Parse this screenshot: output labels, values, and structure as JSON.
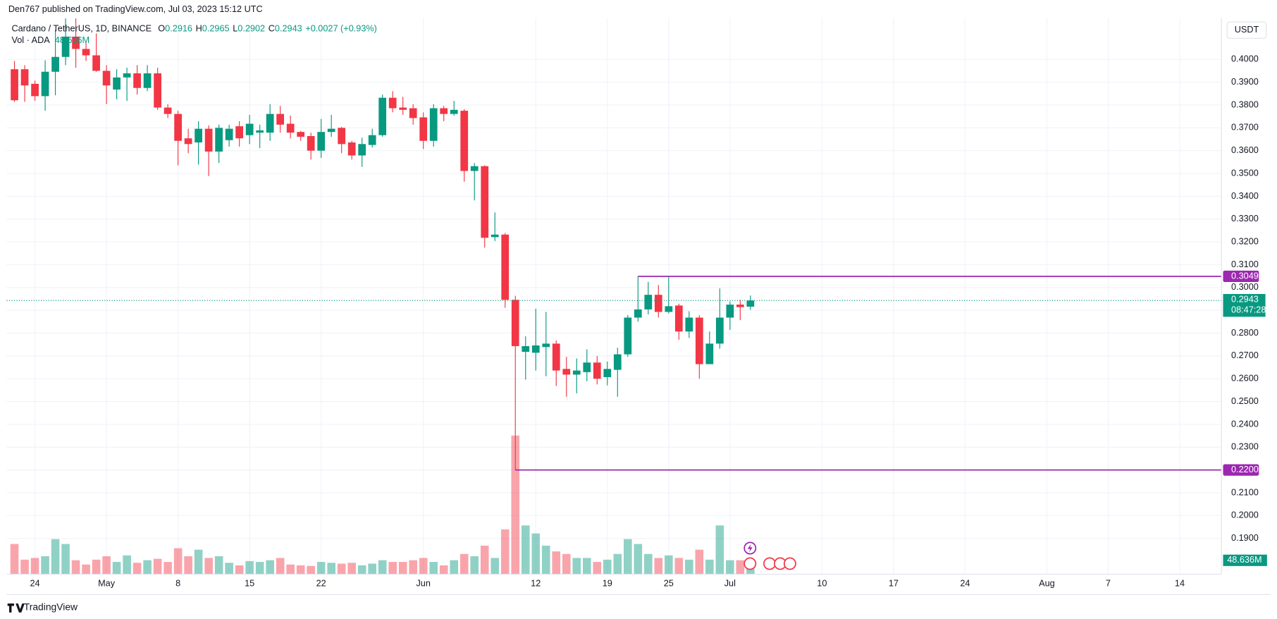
{
  "header": {
    "publisher": "Den767 published on TradingView.com, Jul 03, 2023 15:12 UTC"
  },
  "footer": {
    "brand": "TradingView"
  },
  "chart_data": {
    "type": "candlestick",
    "symbol": "Cardano / TetherUS, 1D, BINANCE",
    "ohlc_prefixes": [
      "O",
      "H",
      "L",
      "C"
    ],
    "change": "+0.0027 (+0.93%)",
    "volume_title": "Vol · ADA",
    "volume_label": "48.636M",
    "currency": "USDT",
    "countdown": "08:47:28",
    "up_color": "#089981",
    "down_color": "#f23645",
    "volume_up_color": "rgba(8,153,129,0.45)",
    "volume_down_color": "rgba(242,54,69,0.45)",
    "level_color": "#9c27b0",
    "grid": true,
    "x": [
      "2023-04-22",
      "2023-04-23",
      "2023-04-24",
      "2023-04-25",
      "2023-04-26",
      "2023-04-27",
      "2023-04-28",
      "2023-04-29",
      "2023-04-30",
      "2023-05-01",
      "2023-05-02",
      "2023-05-03",
      "2023-05-04",
      "2023-05-05",
      "2023-05-06",
      "2023-05-07",
      "2023-05-08",
      "2023-05-09",
      "2023-05-10",
      "2023-05-11",
      "2023-05-12",
      "2023-05-13",
      "2023-05-14",
      "2023-05-15",
      "2023-05-16",
      "2023-05-17",
      "2023-05-18",
      "2023-05-19",
      "2023-05-20",
      "2023-05-21",
      "2023-05-22",
      "2023-05-23",
      "2023-05-24",
      "2023-05-25",
      "2023-05-26",
      "2023-05-27",
      "2023-05-28",
      "2023-05-29",
      "2023-05-30",
      "2023-05-31",
      "2023-06-01",
      "2023-06-02",
      "2023-06-03",
      "2023-06-04",
      "2023-06-05",
      "2023-06-06",
      "2023-06-07",
      "2023-06-08",
      "2023-06-09",
      "2023-06-10",
      "2023-06-11",
      "2023-06-12",
      "2023-06-13",
      "2023-06-14",
      "2023-06-15",
      "2023-06-16",
      "2023-06-17",
      "2023-06-18",
      "2023-06-19",
      "2023-06-20",
      "2023-06-21",
      "2023-06-22",
      "2023-06-23",
      "2023-06-24",
      "2023-06-25",
      "2023-06-26",
      "2023-06-27",
      "2023-06-28",
      "2023-06-29",
      "2023-06-30",
      "2023-07-01",
      "2023-07-02",
      "2023-07-03"
    ],
    "open": [
      0.3957,
      0.3957,
      0.3893,
      0.3839,
      0.3946,
      0.4011,
      0.41,
      0.4046,
      0.4018,
      0.395,
      0.3868,
      0.3921,
      0.3939,
      0.3875,
      0.3939,
      0.3789,
      0.3761,
      0.3654,
      0.3636,
      0.3696,
      0.3596,
      0.3646,
      0.3707,
      0.3668,
      0.3679,
      0.3679,
      0.3761,
      0.3718,
      0.3682,
      0.3664,
      0.36,
      0.3682,
      0.37,
      0.3636,
      0.3579,
      0.3625,
      0.3668,
      0.3832,
      0.3789,
      0.3786,
      0.3746,
      0.3643,
      0.3786,
      0.3761,
      0.3775,
      0.3511,
      0.3532,
      0.3221,
      0.3232,
      0.2946,
      0.2718,
      0.2714,
      0.2739,
      0.2754,
      0.2643,
      0.2618,
      0.2629,
      0.2671,
      0.2607,
      0.2639,
      0.2707,
      0.2868,
      0.2904,
      0.2968,
      0.2893,
      0.2921,
      0.2807,
      0.2868,
      0.2664,
      0.2754,
      0.2868,
      0.2925,
      0.2916
    ],
    "high": [
      0.3993,
      0.3975,
      0.3907,
      0.3996,
      0.4129,
      0.418,
      0.418,
      0.4075,
      0.4114,
      0.3975,
      0.3957,
      0.3964,
      0.3975,
      0.3975,
      0.3964,
      0.3804,
      0.3775,
      0.3696,
      0.3729,
      0.3711,
      0.3714,
      0.3714,
      0.3729,
      0.3757,
      0.3714,
      0.3804,
      0.3796,
      0.3754,
      0.3686,
      0.3679,
      0.3739,
      0.3757,
      0.3704,
      0.3643,
      0.3657,
      0.3696,
      0.3846,
      0.3861,
      0.3836,
      0.3804,
      0.3768,
      0.3804,
      0.3796,
      0.3818,
      0.3782,
      0.3546,
      0.3536,
      0.3329,
      0.3239,
      0.2964,
      0.2786,
      0.2907,
      0.2893,
      0.2768,
      0.2696,
      0.2689,
      0.2729,
      0.27,
      0.2675,
      0.2736,
      0.2879,
      0.3049,
      0.3025,
      0.3011,
      0.3049,
      0.2929,
      0.2896,
      0.2879,
      0.2807,
      0.2996,
      0.2939,
      0.2946,
      0.2965
    ],
    "low": [
      0.3814,
      0.3814,
      0.3818,
      0.3775,
      0.3843,
      0.3975,
      0.3964,
      0.3993,
      0.3946,
      0.3804,
      0.3825,
      0.3818,
      0.3846,
      0.3861,
      0.3779,
      0.3743,
      0.3536,
      0.3589,
      0.3539,
      0.3489,
      0.3546,
      0.3618,
      0.3618,
      0.3629,
      0.3611,
      0.3643,
      0.3679,
      0.3654,
      0.3643,
      0.3561,
      0.3568,
      0.3661,
      0.3589,
      0.3561,
      0.3529,
      0.3614,
      0.3661,
      0.3768,
      0.3757,
      0.3714,
      0.3607,
      0.3618,
      0.3729,
      0.3754,
      0.3464,
      0.3382,
      0.3175,
      0.3204,
      0.2911,
      0.22,
      0.2596,
      0.2636,
      0.2611,
      0.2568,
      0.2521,
      0.2536,
      0.2589,
      0.2575,
      0.2571,
      0.2521,
      0.2696,
      0.285,
      0.2882,
      0.2868,
      0.2886,
      0.2771,
      0.2779,
      0.26,
      0.2664,
      0.2732,
      0.2814,
      0.2857,
      0.2902
    ],
    "close": [
      0.3821,
      0.3886,
      0.3839,
      0.3946,
      0.4011,
      0.41,
      0.4046,
      0.4018,
      0.395,
      0.3886,
      0.3921,
      0.3939,
      0.3875,
      0.3939,
      0.3789,
      0.3761,
      0.3643,
      0.3629,
      0.3696,
      0.3596,
      0.37,
      0.3696,
      0.3654,
      0.3718,
      0.3689,
      0.3761,
      0.3714,
      0.3679,
      0.3661,
      0.36,
      0.3682,
      0.3696,
      0.3629,
      0.3579,
      0.3629,
      0.3668,
      0.3832,
      0.3786,
      0.3779,
      0.3743,
      0.3643,
      0.3786,
      0.3761,
      0.3779,
      0.3511,
      0.3532,
      0.3218,
      0.3232,
      0.2946,
      0.2743,
      0.2743,
      0.2746,
      0.2754,
      0.2636,
      0.2618,
      0.2636,
      0.2671,
      0.26,
      0.2643,
      0.2707,
      0.2868,
      0.2904,
      0.2968,
      0.2893,
      0.2918,
      0.2807,
      0.2868,
      0.2664,
      0.2754,
      0.2868,
      0.2925,
      0.2914,
      0.2943
    ],
    "volume": [
      106,
      51,
      57,
      63,
      123,
      106,
      49,
      34,
      51,
      63,
      43,
      66,
      40,
      49,
      54,
      43,
      91,
      63,
      86,
      57,
      63,
      40,
      31,
      46,
      43,
      49,
      57,
      34,
      31,
      29,
      43,
      40,
      37,
      40,
      31,
      37,
      49,
      43,
      43,
      49,
      57,
      43,
      31,
      49,
      71,
      63,
      100,
      57,
      157,
      486,
      171,
      143,
      100,
      80,
      71,
      57,
      57,
      43,
      51,
      71,
      123,
      106,
      71,
      57,
      66,
      57,
      51,
      86,
      51,
      171,
      49,
      49,
      48.636
    ],
    "volume_ylim": [
      0,
      1950
    ],
    "xlim": [
      "2023-04-21",
      "2023-08-18"
    ],
    "xticks": [
      {
        "value": "2023-04-24",
        "label": "24"
      },
      {
        "value": "2023-05-01",
        "label": "May"
      },
      {
        "value": "2023-05-08",
        "label": "8"
      },
      {
        "value": "2023-05-15",
        "label": "15"
      },
      {
        "value": "2023-05-22",
        "label": "22"
      },
      {
        "value": "2023-06-01",
        "label": "Jun"
      },
      {
        "value": "2023-06-12",
        "label": "12"
      },
      {
        "value": "2023-06-19",
        "label": "19"
      },
      {
        "value": "2023-06-25",
        "label": "25"
      },
      {
        "value": "2023-07-01",
        "label": "Jul"
      },
      {
        "value": "2023-07-10",
        "label": "10"
      },
      {
        "value": "2023-07-17",
        "label": "17"
      },
      {
        "value": "2023-07-24",
        "label": "24"
      },
      {
        "value": "2023-08-01",
        "label": "Aug"
      },
      {
        "value": "2023-08-07",
        "label": "7"
      },
      {
        "value": "2023-08-14",
        "label": "14"
      }
    ],
    "ylim": [
      0.1743,
      0.4182
    ],
    "yticks": [
      {
        "value": 0.19,
        "label": "0.1900"
      },
      {
        "value": 0.2,
        "label": "0.2000"
      },
      {
        "value": 0.21,
        "label": "0.2100"
      },
      {
        "value": 0.22,
        "label": "0.2200"
      },
      {
        "value": 0.23,
        "label": "0.2300"
      },
      {
        "value": 0.24,
        "label": "0.2400"
      },
      {
        "value": 0.25,
        "label": "0.2500"
      },
      {
        "value": 0.26,
        "label": "0.2600"
      },
      {
        "value": 0.27,
        "label": "0.2700"
      },
      {
        "value": 0.28,
        "label": "0.2800"
      },
      {
        "value": 0.29,
        "label": "0.2900"
      },
      {
        "value": 0.3,
        "label": "0.3000"
      },
      {
        "value": 0.31,
        "label": "0.3100"
      },
      {
        "value": 0.32,
        "label": "0.3200"
      },
      {
        "value": 0.33,
        "label": "0.3300"
      },
      {
        "value": 0.34,
        "label": "0.3400"
      },
      {
        "value": 0.35,
        "label": "0.3500"
      },
      {
        "value": 0.36,
        "label": "0.3600"
      },
      {
        "value": 0.37,
        "label": "0.3700"
      },
      {
        "value": 0.38,
        "label": "0.3800"
      },
      {
        "value": 0.39,
        "label": "0.3900"
      },
      {
        "value": 0.4,
        "label": "0.4000"
      }
    ],
    "price_line": {
      "value": 0.2943,
      "label": "0.2943"
    },
    "levels": [
      {
        "value": 0.3049,
        "label": "0.3049",
        "from": "2023-06-22"
      },
      {
        "value": 0.22,
        "label": "0.2200",
        "from": "2023-06-10"
      }
    ]
  }
}
